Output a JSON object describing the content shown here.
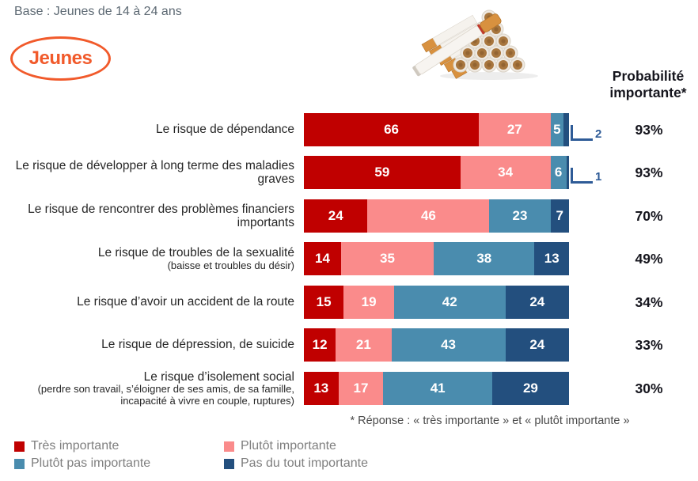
{
  "header": {
    "base_label": "Base : Jeunes de 14 à 24 ans",
    "badge_label": "Jeunes",
    "illustration": "cigarettes-pile-photo"
  },
  "chart_data": {
    "type": "stacked-bar-horizontal",
    "xlim": [
      0,
      100
    ],
    "grid": false,
    "legend_position": "bottom",
    "categories": [
      {
        "label": "Le risque de dépendance",
        "sublabel": ""
      },
      {
        "label": "Le risque de développer à long terme des maladies graves",
        "sublabel": ""
      },
      {
        "label": "Le risque de rencontrer des problèmes financiers importants",
        "sublabel": ""
      },
      {
        "label": "Le risque de troubles de la sexualité",
        "sublabel": "(baisse et troubles du désir)"
      },
      {
        "label": "Le risque d’avoir un accident de la route",
        "sublabel": ""
      },
      {
        "label": "Le risque de dépression, de suicide",
        "sublabel": ""
      },
      {
        "label": "Le risque d’isolement social",
        "sublabel": "(perdre son travail, s’éloigner de ses amis, de sa famille, incapacité à vivre en couple, ruptures)"
      }
    ],
    "series": [
      {
        "name": "Très importante",
        "color": "#c00000",
        "values": [
          66,
          59,
          24,
          14,
          15,
          12,
          13
        ]
      },
      {
        "name": "Plutôt importante",
        "color": "#fa8b8b",
        "values": [
          27,
          34,
          46,
          35,
          19,
          21,
          17
        ]
      },
      {
        "name": "Plutôt pas importante",
        "color": "#4a8cae",
        "values": [
          5,
          6,
          23,
          38,
          42,
          43,
          41
        ]
      },
      {
        "name": "Pas du tout importante",
        "color": "#234f7e",
        "values": [
          2,
          1,
          7,
          13,
          24,
          24,
          29
        ]
      }
    ],
    "totals_header": [
      "Probabilité",
      "importante*"
    ],
    "totals": [
      "93%",
      "93%",
      "70%",
      "49%",
      "34%",
      "33%",
      "30%"
    ],
    "min_inline_value": 3,
    "callout_color": "#2e5b97"
  },
  "footnote": "* Réponse : « très importante » et « plutôt importante »",
  "legend": [
    {
      "label": "Très importante",
      "color": "#c00000"
    },
    {
      "label": "Plutôt importante",
      "color": "#fa8b8b"
    },
    {
      "label": "Plutôt pas importante",
      "color": "#4a8cae"
    },
    {
      "label": "Pas du tout importante",
      "color": "#234f7e"
    }
  ],
  "colors": {
    "accent_orange": "#f15a2b",
    "base_text": "#5d6973",
    "header_text": "#15151d",
    "legend_text": "#7f7f7f"
  }
}
